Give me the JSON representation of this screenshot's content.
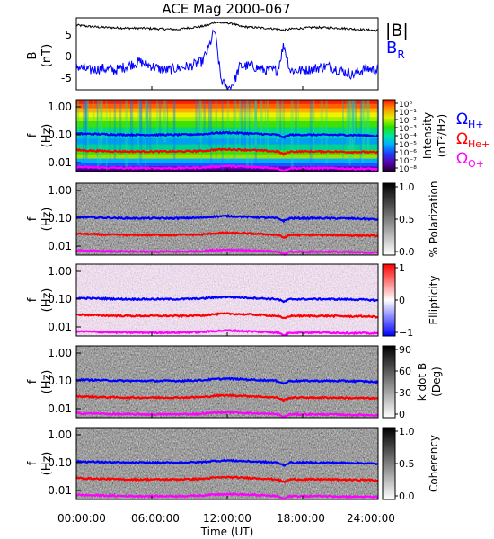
{
  "title": "ACE Mag 2000-067",
  "x_axis": {
    "label": "Time (UT)",
    "ticks": [
      "00:00:00",
      "06:00:00",
      "12:00:00",
      "18:00:00",
      "24:00:00"
    ]
  },
  "legend": {
    "babs": "|B|",
    "br_main": "B",
    "br_sub": "R",
    "omega": "Ω",
    "h_sub": "H+",
    "he_sub": "He+",
    "o_sub": "O+"
  },
  "colors": {
    "babs": "#000000",
    "br": "#0000ff",
    "h": "#0000ff",
    "he": "#ff0000",
    "o": "#ff00ff"
  },
  "panels": [
    {
      "id": "mag",
      "ylabel_line1": "B",
      "ylabel_line2": "(nT)",
      "yticks": [
        "5",
        "0",
        "-5"
      ]
    },
    {
      "id": "intensity",
      "ylabel_line1": "f",
      "ylabel_line2": "(Hz)",
      "yticks": [
        "1.00",
        "0.10",
        "0.01"
      ],
      "colorbar": "rainbow",
      "cb_label_line1": "Intensity",
      "cb_label_line2": "(nT²/Hz)",
      "cb_ticks": [
        "10⁰",
        "10⁻¹",
        "10⁻²",
        "10⁻³",
        "10⁻⁴",
        "10⁻⁵",
        "10⁻⁶",
        "10⁻⁷",
        "10⁻⁸"
      ]
    },
    {
      "id": "polarization",
      "ylabel_line1": "f",
      "ylabel_line2": "(Hz)",
      "yticks": [
        "1.00",
        "0.10",
        "0.01"
      ],
      "colorbar": "gray",
      "cb_label_line1": "% Polarization",
      "cb_label_line2": "",
      "cb_ticks": [
        "1.0",
        "0.5",
        "0.0"
      ]
    },
    {
      "id": "ellipticity",
      "ylabel_line1": "f",
      "ylabel_line2": "(Hz)",
      "yticks": [
        "1.00",
        "0.10",
        "0.01"
      ],
      "colorbar": "redblue",
      "cb_label_line1": "Ellipticity",
      "cb_label_line2": "",
      "cb_ticks": [
        "1",
        "0",
        "−1"
      ]
    },
    {
      "id": "kdotb",
      "ylabel_line1": "f",
      "ylabel_line2": "(Hz)",
      "yticks": [
        "1.00",
        "0.10",
        "0.01"
      ],
      "colorbar": "gray",
      "cb_label_line1": "k dot B",
      "cb_label_line2": "(Deg)",
      "cb_ticks": [
        "90",
        "60",
        "30",
        "0"
      ]
    },
    {
      "id": "coherency",
      "ylabel_line1": "f",
      "ylabel_line2": "(Hz)",
      "yticks": [
        "1.00",
        "0.10",
        "0.01"
      ],
      "colorbar": "gray",
      "cb_label_line1": "Coherency",
      "cb_label_line2": "",
      "cb_ticks": [
        "1.0",
        "0.5",
        "0.0"
      ]
    }
  ],
  "chart_data": {
    "type": "line",
    "title": "ACE Mag 2000-067",
    "xlabel": "Time (UT)",
    "xlim": [
      "00:00:00",
      "24:00:00"
    ],
    "mag_panel": {
      "ylabel": "B (nT)",
      "ylim": [
        -8,
        8
      ],
      "x_hours": [
        0,
        1,
        2,
        3,
        4,
        5,
        6,
        7,
        8,
        9,
        10,
        10.5,
        11,
        11.5,
        12,
        12.5,
        13,
        14,
        15,
        16,
        16.5,
        17,
        18,
        19,
        20,
        21,
        22,
        23,
        24
      ],
      "series": [
        {
          "name": "|B|",
          "values": [
            7.5,
            7.2,
            7.0,
            6.9,
            6.8,
            6.8,
            6.7,
            6.6,
            6.5,
            6.9,
            7.2,
            7.5,
            8.2,
            8.0,
            8.0,
            7.8,
            7.2,
            7.0,
            6.8,
            6.6,
            6.3,
            6.6,
            6.8,
            7.0,
            6.9,
            6.8,
            6.6,
            6.4,
            6.3
          ]
        },
        {
          "name": "BR",
          "values": [
            -2,
            -3,
            -2.5,
            -3,
            -2,
            -1,
            -2,
            -3,
            -2.5,
            -2,
            -1,
            2,
            6.5,
            -5,
            -7.5,
            -6,
            -2,
            -2,
            -3,
            -3,
            3,
            -3,
            -3,
            -2.5,
            -2,
            -3,
            -4,
            -2.5,
            -3
          ]
        }
      ]
    },
    "spectrogram_panels": {
      "ylabel": "f (Hz)",
      "yscale": "log",
      "ylim": [
        0.004,
        1.2
      ],
      "x_hours": [
        0,
        2,
        4,
        6,
        8,
        10,
        11,
        12,
        14,
        16,
        16.5,
        17,
        18,
        20,
        22,
        23,
        24
      ],
      "series": [
        {
          "name": "ΩH+",
          "values": [
            0.11,
            0.105,
            0.1,
            0.1,
            0.1,
            0.105,
            0.115,
            0.12,
            0.11,
            0.1,
            0.08,
            0.1,
            0.1,
            0.1,
            0.098,
            0.095,
            0.09
          ]
        },
        {
          "name": "ΩHe+",
          "values": [
            0.028,
            0.026,
            0.025,
            0.025,
            0.025,
            0.026,
            0.029,
            0.03,
            0.028,
            0.025,
            0.02,
            0.025,
            0.025,
            0.025,
            0.024,
            0.024,
            0.023
          ]
        },
        {
          "name": "ΩO+",
          "values": [
            0.0069,
            0.0066,
            0.0063,
            0.0063,
            0.0063,
            0.0066,
            0.0072,
            0.0075,
            0.0069,
            0.0063,
            0.005,
            0.0063,
            0.0063,
            0.0063,
            0.006,
            0.006,
            0.0058
          ]
        }
      ]
    }
  }
}
